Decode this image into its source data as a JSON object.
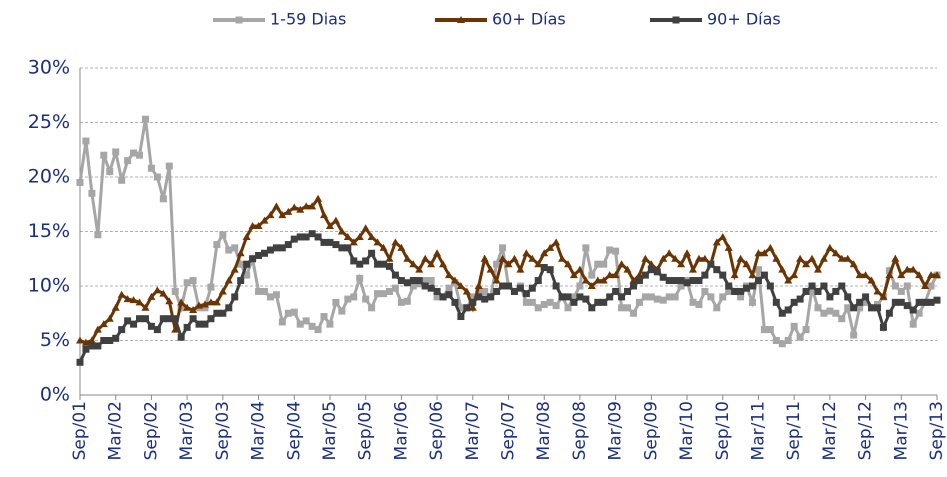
{
  "chart_data": {
    "type": "line",
    "categories": [
      "Sep/01",
      null,
      null,
      null,
      null,
      null,
      "Mar/02",
      null,
      null,
      null,
      null,
      null,
      "Sep/02",
      null,
      null,
      null,
      null,
      null,
      "Mar/03",
      null,
      null,
      null,
      null,
      null,
      "Sep/03",
      null,
      null,
      null,
      null,
      null,
      "Mar/04",
      null,
      null,
      null,
      null,
      null,
      "Sep/04",
      null,
      null,
      null,
      null,
      null,
      "Mar/05",
      null,
      null,
      null,
      null,
      null,
      "Sep/05",
      null,
      null,
      null,
      null,
      null,
      "Mar/06",
      null,
      null,
      null,
      null,
      null,
      "Sep/06",
      null,
      null,
      null,
      null,
      null,
      "Mar/07",
      null,
      null,
      null,
      null,
      null,
      "Sep/07",
      null,
      null,
      null,
      null,
      null,
      "Mar/08",
      null,
      null,
      null,
      null,
      null,
      "Sep/08",
      null,
      null,
      null,
      null,
      null,
      "Mar/09",
      null,
      null,
      null,
      null,
      null,
      "Sep/09",
      null,
      null,
      null,
      null,
      null,
      "Mar/10",
      null,
      null,
      null,
      null,
      null,
      "Sep/10",
      null,
      null,
      null,
      null,
      null,
      "Mar/11",
      null,
      null,
      null,
      null,
      null,
      "Sep/11",
      null,
      null,
      null,
      null,
      null,
      "Mar/12",
      null,
      null,
      null,
      null,
      null,
      "Sep/12",
      null,
      null,
      null,
      null,
      null,
      "Mar/13",
      null,
      null,
      null,
      null,
      null,
      "Sep/13"
    ],
    "series": [
      {
        "name": "1-59 Dias",
        "color": "#a6a6a6",
        "marker": "square",
        "values": [
          19.5,
          23.3,
          18.5,
          14.7,
          22,
          20.5,
          22.3,
          19.7,
          21.5,
          22.2,
          22,
          25.3,
          20.8,
          20,
          18,
          21,
          9.5,
          8,
          10.3,
          10.5,
          8,
          8,
          9.9,
          13.8,
          14.7,
          13.3,
          13.5,
          12,
          11,
          12.5,
          9.5,
          9.5,
          9,
          9.2,
          6.7,
          7.5,
          7.6,
          6.5,
          6.8,
          6.3,
          6,
          7.2,
          6.5,
          8.5,
          7.7,
          8.8,
          9,
          10.7,
          8.8,
          8,
          9.3,
          9.3,
          9.5,
          9.8,
          8.5,
          8.6,
          10,
          10.2,
          10.5,
          10.5,
          9,
          9,
          9.8,
          10.3,
          8,
          8,
          9,
          9.4,
          9.5,
          9,
          12,
          13.5,
          10,
          9.5,
          10,
          8.5,
          8.5,
          8,
          8.3,
          8.5,
          8.2,
          9,
          8,
          9,
          10,
          13.5,
          11,
          12,
          12,
          13.3,
          13.2,
          8,
          8,
          7.5,
          8.5,
          9,
          9,
          8.8,
          8.7,
          9,
          9,
          10,
          10.5,
          8.5,
          8.3,
          9.5,
          9,
          8,
          9,
          9.5,
          9.5,
          9,
          10,
          8.5,
          11.5,
          6,
          6,
          5,
          4.7,
          5,
          6.3,
          5.3,
          6,
          9.8,
          8,
          7.5,
          7.7,
          7.5,
          7,
          8,
          5.5,
          8,
          8.5,
          8,
          8.3,
          9,
          11.4,
          10,
          9.5,
          10,
          6.5,
          7.5,
          8.5,
          10,
          11
        ]
      },
      {
        "name": "60+ Días",
        "color": "#6b3503",
        "marker": "triangle",
        "values": [
          5,
          4.8,
          5,
          6,
          6.5,
          7,
          8,
          9.2,
          8.8,
          8.7,
          8.5,
          8,
          9,
          9.6,
          9.3,
          8.6,
          6,
          8.5,
          8,
          7.8,
          8.2,
          8.3,
          8.5,
          8.5,
          9.5,
          10.5,
          11.5,
          13,
          14.5,
          15.5,
          15.5,
          16,
          16.5,
          17.3,
          16.5,
          16.8,
          17.2,
          17,
          17.3,
          17.3,
          18,
          16.5,
          15.5,
          16,
          15,
          14.5,
          14,
          14.5,
          15.3,
          14.5,
          14,
          13.5,
          12.5,
          14,
          13.5,
          12.5,
          12,
          11.5,
          12.5,
          12,
          13,
          12,
          11,
          10.5,
          10,
          9.5,
          8,
          10,
          12.5,
          11.5,
          10.5,
          12.5,
          12,
          12.5,
          11.5,
          13,
          12.5,
          12,
          13,
          13.5,
          14,
          12.5,
          12,
          11,
          11.5,
          10.5,
          10,
          10.5,
          10.5,
          11,
          11,
          12,
          11.5,
          10.5,
          11,
          12.5,
          12,
          11.5,
          12.5,
          13,
          12.5,
          12,
          13,
          11.5,
          12.5,
          12.5,
          12,
          14,
          14.5,
          13.5,
          11,
          12.5,
          12,
          11,
          13,
          13,
          13.5,
          12.5,
          11.5,
          10.5,
          11,
          12.5,
          12,
          12.5,
          11.5,
          12.5,
          13.5,
          13,
          12.5,
          12.5,
          12,
          11,
          11,
          10.5,
          9.5,
          9,
          11,
          12.5,
          11,
          11.5,
          11.5,
          11,
          10,
          11,
          11
        ]
      },
      {
        "name": "90+ Días",
        "color": "#404040",
        "marker": "square",
        "values": [
          3,
          4.2,
          4.5,
          4.5,
          5,
          5,
          5.2,
          6,
          6.8,
          6.5,
          7,
          7,
          6.3,
          6,
          7,
          7,
          7,
          5.3,
          6.2,
          7,
          6.5,
          6.5,
          7,
          7.5,
          7.5,
          8,
          9,
          10.5,
          12,
          12.5,
          12.8,
          13,
          13.3,
          13.5,
          13.5,
          13.8,
          14.3,
          14.5,
          14.5,
          14.8,
          14.5,
          14,
          14,
          13.8,
          13.5,
          13.5,
          12.3,
          12,
          12.3,
          13,
          12,
          12,
          11.8,
          11,
          10.5,
          10.3,
          10.5,
          10.5,
          10,
          9.8,
          9.5,
          9,
          9.2,
          8.5,
          7.2,
          8,
          8.5,
          9,
          8.8,
          9,
          9.5,
          10,
          10,
          9.5,
          9.8,
          9.3,
          9.8,
          10.5,
          11.7,
          11.5,
          10,
          9,
          9,
          8.5,
          9,
          8.8,
          8,
          8.5,
          8.5,
          9,
          9.5,
          9,
          9.5,
          10,
          10.5,
          11,
          11.5,
          11.3,
          10.8,
          10.5,
          10.5,
          10.5,
          10.3,
          10.5,
          10.5,
          11,
          12,
          11.5,
          11,
          10,
          9.5,
          9.5,
          9.8,
          10,
          10.5,
          11,
          10,
          8.5,
          7.5,
          7.8,
          8.5,
          8.8,
          9.5,
          10,
          9.5,
          10,
          9,
          9.5,
          10,
          9,
          8,
          8.5,
          9,
          8,
          8,
          6.2,
          7.5,
          8.5,
          8.5,
          8.2,
          7.8,
          8.5,
          8.5,
          8.5,
          8.7
        ]
      }
    ],
    "ylim": [
      0,
      30
    ],
    "yticks": [
      {
        "value": 0,
        "label": "0%"
      },
      {
        "value": 5,
        "label": "5%"
      },
      {
        "value": 10,
        "label": "10%"
      },
      {
        "value": 15,
        "label": "15%"
      },
      {
        "value": 20,
        "label": "20%"
      },
      {
        "value": 25,
        "label": "25%"
      },
      {
        "value": 30,
        "label": "30%"
      }
    ],
    "grid": true,
    "legend": "top"
  }
}
